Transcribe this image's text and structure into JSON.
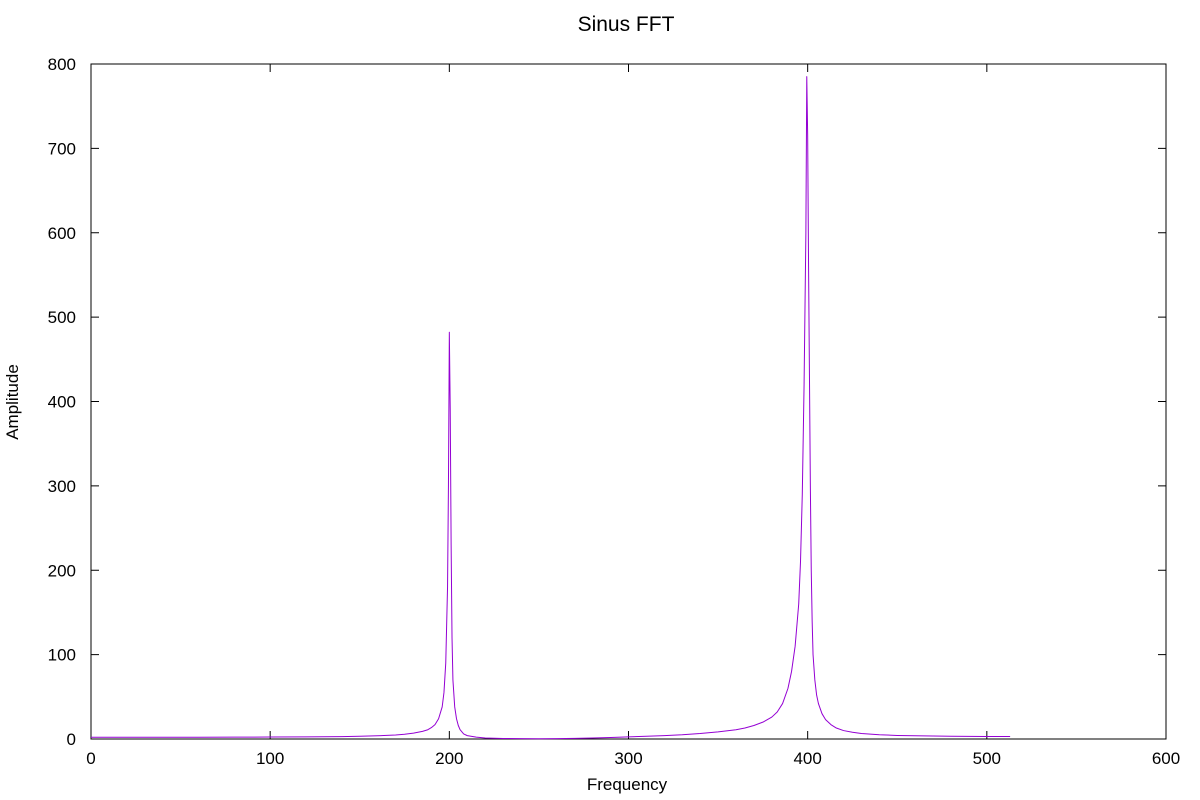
{
  "chart_data": {
    "type": "line",
    "title": "Sinus FFT",
    "xlabel": "Frequency",
    "ylabel": "Amplitude",
    "xlim": [
      0,
      600
    ],
    "ylim": [
      0,
      800
    ],
    "grid": false,
    "xticks": [
      0,
      100,
      200,
      300,
      400,
      500,
      600
    ],
    "yticks": [
      0,
      100,
      200,
      300,
      400,
      500,
      600,
      700,
      800
    ],
    "line_color": "#9400d3",
    "series": [
      {
        "x": [
          0,
          20,
          40,
          60,
          80,
          100,
          120,
          140,
          150,
          160,
          170,
          175,
          180,
          185,
          188,
          190,
          192,
          194,
          196,
          197,
          198,
          199,
          199.5,
          200,
          200.5,
          201,
          201.5,
          202,
          203,
          204,
          205,
          206,
          208,
          210,
          215,
          220,
          230,
          240,
          250,
          260,
          270,
          280,
          290,
          300,
          310,
          320,
          330,
          340,
          350,
          360,
          365,
          370,
          375,
          380,
          383,
          386,
          389,
          391,
          393,
          395,
          396,
          397,
          398,
          399,
          399.5,
          400,
          400.5,
          401,
          401.5,
          402,
          402.5,
          403,
          404,
          405,
          406,
          408,
          410,
          413,
          416,
          420,
          425,
          430,
          440,
          450,
          460,
          470,
          480,
          490,
          500,
          510,
          513
        ],
        "y": [
          2,
          2,
          2,
          2.1,
          2.2,
          2.3,
          2.5,
          2.8,
          3.2,
          3.8,
          4.8,
          5.6,
          7,
          9,
          11,
          13.5,
          17,
          24,
          38,
          55,
          90,
          180,
          300,
          482,
          390,
          230,
          120,
          70,
          38,
          24,
          16,
          11,
          6,
          4,
          2.2,
          1.2,
          0.6,
          0.4,
          0.3,
          0.4,
          0.8,
          1.2,
          1.8,
          2.5,
          3.2,
          4,
          5,
          6.5,
          8.5,
          11,
          13,
          16,
          20,
          26,
          32,
          42,
          60,
          80,
          110,
          160,
          210,
          290,
          420,
          600,
          785,
          715,
          560,
          430,
          300,
          200,
          140,
          100,
          70,
          52,
          42,
          30,
          23,
          17,
          13,
          10,
          8,
          6.5,
          5,
          4.2,
          3.8,
          3.5,
          3.3,
          3.1,
          3,
          3,
          3
        ]
      }
    ]
  }
}
